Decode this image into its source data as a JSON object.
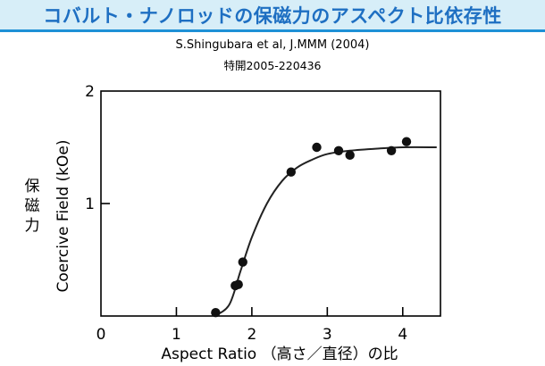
{
  "header": {
    "title": "コバルト・ナノロッドの保磁力のアスペクト比依存性",
    "accent_color": "#1e6fc2",
    "background_color": "#d7eef8"
  },
  "citation": "S.Shingubara et al, J.MMM (2004)",
  "patent": "特開2005-220436",
  "chart_data": {
    "type": "scatter",
    "title": "",
    "xlabel": "Aspect Ratio （高さ／直径）の比",
    "ylabel": "Coercive Field (kOe)",
    "ylabel_jp": "保磁力",
    "xlim": [
      0,
      4.5
    ],
    "ylim": [
      0,
      2
    ],
    "x_ticks": [
      0,
      1,
      2,
      3,
      4
    ],
    "y_ticks": [
      1,
      2
    ],
    "grid": false,
    "points": [
      {
        "x": 1.52,
        "y": 0.03
      },
      {
        "x": 1.78,
        "y": 0.27
      },
      {
        "x": 1.82,
        "y": 0.28
      },
      {
        "x": 1.88,
        "y": 0.48
      },
      {
        "x": 2.52,
        "y": 1.28
      },
      {
        "x": 2.86,
        "y": 1.5
      },
      {
        "x": 3.15,
        "y": 1.47
      },
      {
        "x": 3.3,
        "y": 1.43
      },
      {
        "x": 3.85,
        "y": 1.47
      },
      {
        "x": 4.05,
        "y": 1.55
      }
    ],
    "fit_curve": [
      {
        "x": 1.5,
        "y": 0.0
      },
      {
        "x": 1.7,
        "y": 0.1
      },
      {
        "x": 1.85,
        "y": 0.4
      },
      {
        "x": 2.0,
        "y": 0.7
      },
      {
        "x": 2.2,
        "y": 1.0
      },
      {
        "x": 2.4,
        "y": 1.2
      },
      {
        "x": 2.6,
        "y": 1.32
      },
      {
        "x": 2.8,
        "y": 1.39
      },
      {
        "x": 3.0,
        "y": 1.44
      },
      {
        "x": 3.3,
        "y": 1.47
      },
      {
        "x": 3.7,
        "y": 1.49
      },
      {
        "x": 4.0,
        "y": 1.5
      },
      {
        "x": 4.45,
        "y": 1.5
      }
    ]
  }
}
